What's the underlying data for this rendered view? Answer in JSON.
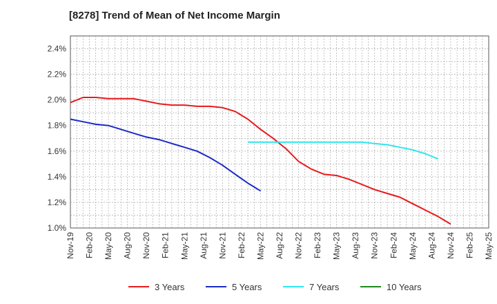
{
  "chart_data": {
    "type": "line",
    "title": "[8278]  Trend of Mean of Net Income Margin",
    "xlabel": "",
    "ylabel": "",
    "y_tick_labels": [
      "1.0%",
      "1.2%",
      "1.4%",
      "1.6%",
      "1.8%",
      "2.0%",
      "2.2%",
      "2.4%"
    ],
    "ylim": [
      1.0,
      2.45
    ],
    "x_tick_labels": [
      "Nov-19",
      "Feb-20",
      "May-20",
      "Aug-20",
      "Nov-20",
      "Feb-21",
      "May-21",
      "Aug-21",
      "Nov-21",
      "Feb-22",
      "May-22",
      "Aug-22",
      "Nov-22",
      "Feb-23",
      "May-23",
      "Aug-23",
      "Nov-23",
      "Feb-24",
      "May-24",
      "Aug-24",
      "Nov-24",
      "Feb-25",
      "May-25"
    ],
    "grid": true,
    "legend_position": "bottom",
    "series": [
      {
        "name": "3 Years",
        "color": "#e8191a",
        "values": [
          1.98,
          2.02,
          2.02,
          2.01,
          2.01,
          2.01,
          1.99,
          1.97,
          1.96,
          1.96,
          1.95,
          1.95,
          1.94,
          1.91,
          1.85,
          1.77,
          1.7,
          1.62,
          1.52,
          1.46,
          1.42,
          1.41,
          1.38,
          1.34,
          1.3,
          1.27,
          1.24,
          1.19,
          1.14,
          1.09,
          1.03
        ]
      },
      {
        "name": "5 Years",
        "color": "#1a29c8",
        "values": [
          null,
          null,
          null,
          null,
          null,
          null,
          null,
          null,
          null,
          null,
          null,
          null,
          1.69,
          1.71,
          1.73,
          1.75,
          1.77,
          1.79,
          1.8,
          1.81,
          1.83,
          1.84,
          1.85,
          1.86,
          1.85,
          1.83,
          1.81,
          1.8,
          1.77,
          1.74,
          1.71,
          1.69,
          1.66,
          1.63,
          1.6,
          1.55,
          1.49,
          1.42,
          1.35,
          1.29
        ]
      },
      {
        "name": "7 Years",
        "color": "#2ee6ee",
        "values": [
          1.67,
          1.67,
          1.67,
          1.67,
          1.67,
          1.67,
          1.67,
          1.67,
          1.67,
          1.67,
          1.66,
          1.65,
          1.63,
          1.61,
          1.58,
          1.54
        ]
      },
      {
        "name": "10 Years",
        "color": "#1c8a1c",
        "values": []
      }
    ]
  }
}
